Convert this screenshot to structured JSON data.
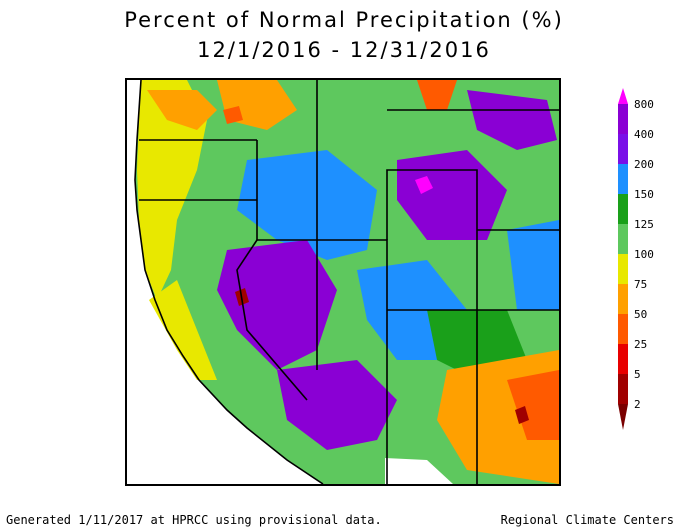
{
  "title": {
    "line1": "Percent of Normal Precipitation (%)",
    "line2": "12/1/2016 - 12/31/2016"
  },
  "legend": {
    "bins": [
      {
        "label": "800",
        "color": "#ff00ff"
      },
      {
        "label": "400",
        "color": "#8a00d4"
      },
      {
        "label": "200",
        "color": "#7a10e8"
      },
      {
        "label": "150",
        "color": "#1e90ff"
      },
      {
        "label": "125",
        "color": "#1aa01a"
      },
      {
        "label": "100",
        "color": "#5ec85e"
      },
      {
        "label": "75",
        "color": "#e8e800"
      },
      {
        "label": "50",
        "color": "#ffa000"
      },
      {
        "label": "25",
        "color": "#ff5a00"
      },
      {
        "label": "5",
        "color": "#e80000"
      },
      {
        "label": "2",
        "color": "#a00000"
      }
    ],
    "bottom_color": "#7a0000"
  },
  "footer": {
    "left": "Generated 1/11/2017 at HPRCC using provisional data.",
    "right": "Regional Climate Centers"
  },
  "map": {
    "region": "Western United States",
    "colors": {
      "ocean": "#ffffff",
      "very_dry": "#a00000",
      "dry": "#ff5a00",
      "below": "#ffa000",
      "low": "#e8e800",
      "normal": "#5ec85e",
      "above": "#1aa01a",
      "wet": "#1e90ff",
      "very_wet": "#8a00d4",
      "extreme": "#ff00ff",
      "border": "#000000"
    }
  }
}
